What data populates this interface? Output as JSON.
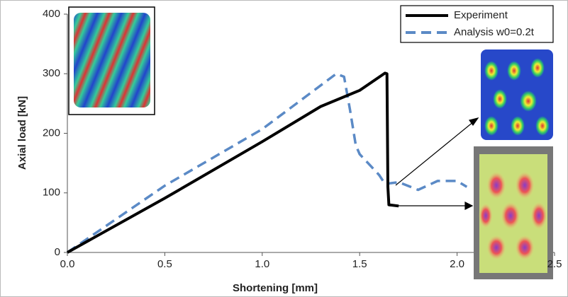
{
  "chart_data": {
    "type": "line",
    "xlabel": "Shortening [mm]",
    "ylabel": "Axial load [kN]",
    "xlim": [
      0,
      2.5
    ],
    "ylim": [
      0,
      400
    ],
    "xticks": [
      {
        "value": 0,
        "label": "0.0"
      },
      0.5,
      {
        "value": 1,
        "label": "1.0"
      },
      1.5,
      {
        "value": 2,
        "label": "2.0"
      },
      2.5
    ],
    "yticks": [
      0,
      100,
      200,
      300,
      400
    ],
    "grid": false,
    "legend": "upper right",
    "series": [
      {
        "name": "Experiment",
        "color": "#000000",
        "style": "solid",
        "x": [
          0,
          0.5,
          1.0,
          1.3,
          1.5,
          1.63,
          1.64,
          1.645,
          1.65,
          1.7
        ],
        "values": [
          0,
          91,
          186,
          245,
          272,
          301,
          300,
          110,
          80,
          78
        ]
      },
      {
        "name": "Analysis w0=0.2t",
        "color": "#5b8ac6",
        "style": "dashed",
        "x": [
          0,
          0.5,
          1.0,
          1.38,
          1.42,
          1.45,
          1.48,
          1.5,
          1.6,
          1.63,
          1.7,
          1.8,
          1.9,
          2.0,
          2.05
        ],
        "values": [
          0,
          112,
          207,
          300,
          295,
          240,
          180,
          165,
          130,
          115,
          118,
          105,
          120,
          120,
          110
        ]
      }
    ]
  }
}
